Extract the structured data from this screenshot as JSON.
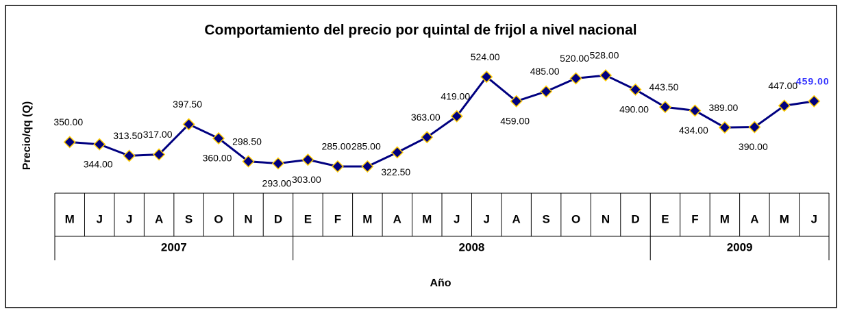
{
  "chart_data": {
    "type": "line",
    "title": "Comportamiento del precio  por quintal de frijol a nivel nacional",
    "y_label": "Precio/qq (Q)",
    "x_label": "Año",
    "categories": [
      "M",
      "J",
      "J",
      "A",
      "S",
      "O",
      "N",
      "D",
      "E",
      "F",
      "M",
      "A",
      "M",
      "J",
      "J",
      "A",
      "S",
      "O",
      "N",
      "D",
      "E",
      "F",
      "M",
      "A",
      "M",
      "J"
    ],
    "years": [
      "2007",
      "2008",
      "2009"
    ],
    "series": [
      {
        "name": "Precio",
        "color": "#000080",
        "marker_edge": "#ffcc00",
        "values": [
          350,
          344,
          313.5,
          317,
          397.5,
          360,
          298.5,
          293,
          303,
          285,
          285,
          322.5,
          363,
          419,
          524,
          459,
          485,
          520,
          528,
          490,
          443.5,
          434,
          389,
          390,
          447,
          459
        ],
        "value_labels": [
          "350.00",
          "344.00",
          "313.50",
          "317.00",
          "397.50",
          "360.00",
          "298.50",
          "293.00",
          "303.00",
          "285.00",
          "285.00",
          "322.50",
          "363.00",
          "419.00",
          "524.00",
          "459.00",
          "485.00",
          "520.00",
          "528.00",
          "490.00",
          "443.50",
          "434.00",
          "389.00",
          "390.00",
          "447.00",
          "459.00"
        ]
      }
    ]
  }
}
